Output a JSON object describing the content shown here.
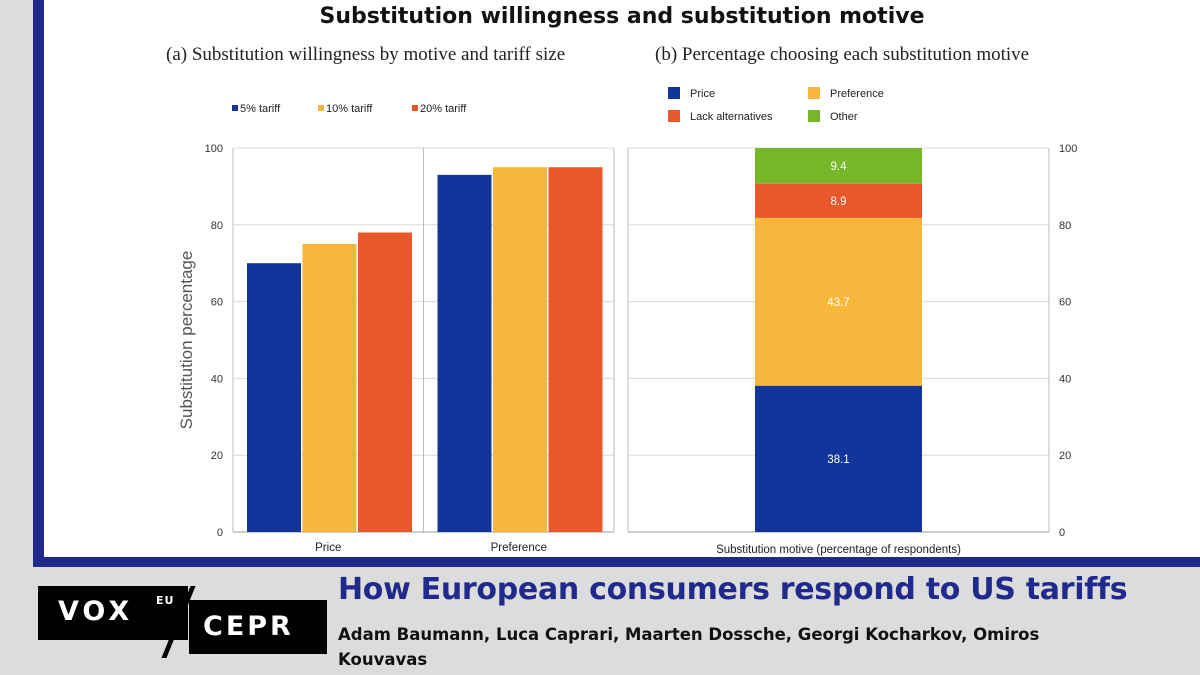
{
  "title": "Substitution willingness and substitution motive",
  "footer": {
    "headline": "How European consumers respond to US tariffs",
    "authors": "Adam Baumann, Luca Caprari, Maarten Dossche, Georgi Kocharkov, Omiros Kouvavas"
  },
  "logo": {
    "vox": "VOX",
    "eu": "EU",
    "cepr": "CEPR"
  },
  "colors": {
    "frame": "#1f2a8c",
    "blue": "#13359b",
    "yellow": "#f6b73c",
    "orange": "#e9582a",
    "green": "#76b82a"
  },
  "chart_data": [
    {
      "type": "bar",
      "title": "(a) Substitution willingness by motive and tariff size",
      "categories": [
        "Price",
        "Preference"
      ],
      "series": [
        {
          "name": "5% tariff",
          "values": [
            70,
            93
          ],
          "color": "#13359b"
        },
        {
          "name": "10% tariff",
          "values": [
            75,
            95
          ],
          "color": "#f6b73c"
        },
        {
          "name": "20% tariff",
          "values": [
            78,
            95
          ],
          "color": "#e9582a"
        }
      ],
      "xlabel": "",
      "ylabel": "Substitution percentage",
      "ylim": [
        0,
        100
      ],
      "yticks": [
        0,
        20,
        40,
        60,
        80,
        100
      ],
      "grid": true,
      "legend": "top-left"
    },
    {
      "type": "bar",
      "stacked": true,
      "title": "(b) Percentage choosing each substitution motive",
      "categories": [
        "Substitution motive (percentage of respondents)"
      ],
      "series": [
        {
          "name": "Price",
          "value": 38.1,
          "label": "38.1",
          "color": "#13359b"
        },
        {
          "name": "Preference",
          "value": 43.7,
          "label": "43.7",
          "color": "#f6b73c"
        },
        {
          "name": "Lack alternatives",
          "value": 8.9,
          "label": "8.9",
          "color": "#e9582a"
        },
        {
          "name": "Other",
          "value": 9.4,
          "label": "9.4",
          "color": "#76b82a"
        }
      ],
      "xlabel": "Substitution motive (percentage of respondents)",
      "ylim": [
        0,
        100
      ],
      "yticks": [
        0,
        20,
        40,
        60,
        80,
        100
      ],
      "grid": true,
      "legend": "top"
    }
  ]
}
